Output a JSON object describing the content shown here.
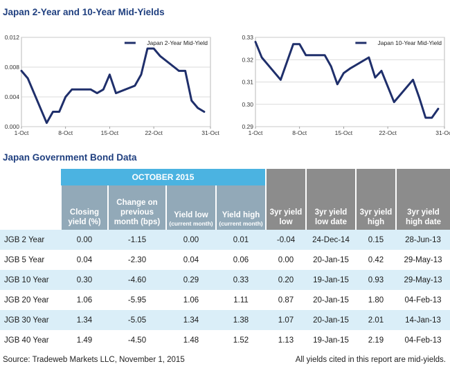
{
  "titles": {
    "charts": "Japan 2-Year and 10-Year Mid-Yields",
    "table": "Japan Government Bond Data"
  },
  "chart_data": [
    {
      "type": "line",
      "title": "",
      "legend": "Japan 2-Year Mid-Yield",
      "legend_position": "top-right",
      "color": "#1f2f6b",
      "x_ticks": [
        "1-Oct",
        "8-Oct",
        "15-Oct",
        "22-Oct",
        "31-Oct"
      ],
      "y_ticks": [
        "0.000",
        "0.004",
        "0.008",
        "0.012"
      ],
      "ylim": [
        0,
        0.012
      ],
      "grid": true,
      "series": [
        {
          "name": "Japan 2-Year Mid-Yield",
          "points": [
            {
              "x": "1-Oct",
              "y": 0.0075
            },
            {
              "x": "2-Oct",
              "y": 0.0065
            },
            {
              "x": "5-Oct",
              "y": 0.0005
            },
            {
              "x": "6-Oct",
              "y": 0.002
            },
            {
              "x": "7-Oct",
              "y": 0.002
            },
            {
              "x": "8-Oct",
              "y": 0.004
            },
            {
              "x": "9-Oct",
              "y": 0.005
            },
            {
              "x": "12-Oct",
              "y": 0.005
            },
            {
              "x": "13-Oct",
              "y": 0.0045
            },
            {
              "x": "14-Oct",
              "y": 0.005
            },
            {
              "x": "15-Oct",
              "y": 0.007
            },
            {
              "x": "16-Oct",
              "y": 0.0045
            },
            {
              "x": "19-Oct",
              "y": 0.0055
            },
            {
              "x": "20-Oct",
              "y": 0.007
            },
            {
              "x": "21-Oct",
              "y": 0.0105
            },
            {
              "x": "22-Oct",
              "y": 0.0105
            },
            {
              "x": "23-Oct",
              "y": 0.0095
            },
            {
              "x": "26-Oct",
              "y": 0.0075
            },
            {
              "x": "27-Oct",
              "y": 0.0075
            },
            {
              "x": "28-Oct",
              "y": 0.0035
            },
            {
              "x": "29-Oct",
              "y": 0.0025
            },
            {
              "x": "30-Oct",
              "y": 0.002
            }
          ]
        }
      ]
    },
    {
      "type": "line",
      "title": "",
      "legend": "Japan 10-Year Mid-Yield",
      "legend_position": "top-right",
      "color": "#1f2f6b",
      "x_ticks": [
        "1-Oct",
        "8-Oct",
        "15-Oct",
        "22-Oct",
        "31-Oct"
      ],
      "y_ticks": [
        "0.29",
        "0.30",
        "0.31",
        "0.32",
        "0.33"
      ],
      "ylim": [
        0.29,
        0.33
      ],
      "grid": true,
      "series": [
        {
          "name": "Japan 10-Year Mid-Yield",
          "points": [
            {
              "x": "1-Oct",
              "y": 0.328
            },
            {
              "x": "2-Oct",
              "y": 0.321
            },
            {
              "x": "5-Oct",
              "y": 0.311
            },
            {
              "x": "6-Oct",
              "y": 0.319
            },
            {
              "x": "7-Oct",
              "y": 0.327
            },
            {
              "x": "8-Oct",
              "y": 0.327
            },
            {
              "x": "9-Oct",
              "y": 0.322
            },
            {
              "x": "12-Oct",
              "y": 0.322
            },
            {
              "x": "13-Oct",
              "y": 0.317
            },
            {
              "x": "14-Oct",
              "y": 0.309
            },
            {
              "x": "15-Oct",
              "y": 0.314
            },
            {
              "x": "16-Oct",
              "y": 0.316
            },
            {
              "x": "19-Oct",
              "y": 0.321
            },
            {
              "x": "20-Oct",
              "y": 0.312
            },
            {
              "x": "21-Oct",
              "y": 0.315
            },
            {
              "x": "22-Oct",
              "y": 0.308
            },
            {
              "x": "23-Oct",
              "y": 0.301
            },
            {
              "x": "26-Oct",
              "y": 0.311
            },
            {
              "x": "27-Oct",
              "y": 0.303
            },
            {
              "x": "28-Oct",
              "y": 0.294
            },
            {
              "x": "29-Oct",
              "y": 0.294
            },
            {
              "x": "30-Oct",
              "y": 0.298
            }
          ]
        }
      ]
    }
  ],
  "table": {
    "group_header": "OCTOBER 2015",
    "columns": [
      {
        "main": "Closing yield (%)",
        "sub": ""
      },
      {
        "main": "Change on previous month (bps)",
        "sub": ""
      },
      {
        "main": "Yield low",
        "sub": "(current month)"
      },
      {
        "main": "Yield high",
        "sub": "(current month)"
      },
      {
        "main": "3yr yield low",
        "sub": ""
      },
      {
        "main": "3yr yield low date",
        "sub": ""
      },
      {
        "main": "3yr yield high",
        "sub": ""
      },
      {
        "main": "3yr yield high date",
        "sub": ""
      }
    ],
    "rows": [
      {
        "label": "JGB 2 Year",
        "cells": [
          "0.00",
          "-1.15",
          "0.00",
          "0.01",
          "-0.04",
          "24-Dec-14",
          "0.15",
          "28-Jun-13"
        ]
      },
      {
        "label": "JGB 5 Year",
        "cells": [
          "0.04",
          "-2.30",
          "0.04",
          "0.06",
          "0.00",
          "20-Jan-15",
          "0.42",
          "29-May-13"
        ]
      },
      {
        "label": "JGB 10 Year",
        "cells": [
          "0.30",
          "-4.60",
          "0.29",
          "0.33",
          "0.20",
          "19-Jan-15",
          "0.93",
          "29-May-13"
        ]
      },
      {
        "label": "JGB 20 Year",
        "cells": [
          "1.06",
          "-5.95",
          "1.06",
          "1.11",
          "0.87",
          "20-Jan-15",
          "1.80",
          "04-Feb-13"
        ]
      },
      {
        "label": "JGB 30 Year",
        "cells": [
          "1.34",
          "-5.05",
          "1.34",
          "1.38",
          "1.07",
          "20-Jan-15",
          "2.01",
          "14-Jan-13"
        ]
      },
      {
        "label": "JGB 40 Year",
        "cells": [
          "1.49",
          "-4.50",
          "1.48",
          "1.52",
          "1.13",
          "19-Jan-15",
          "2.19",
          "04-Feb-13"
        ]
      }
    ]
  },
  "footer": {
    "source": "Source: Tradeweb Markets LLC, November 1, 2015",
    "note": "All yields cited in this report are mid-yields."
  }
}
